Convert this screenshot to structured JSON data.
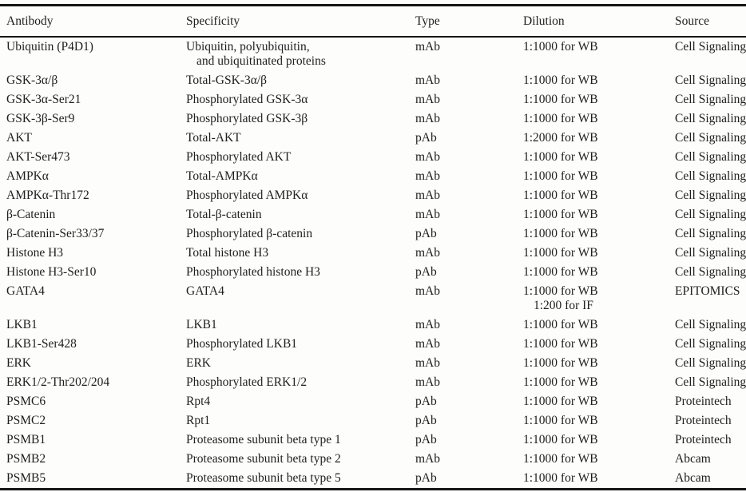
{
  "page": {
    "background": "#fdfdfc",
    "text_color": "#1e1e1e",
    "rule_color": "#161616"
  },
  "table": {
    "columns": [
      {
        "key": "antibody",
        "label": "Antibody"
      },
      {
        "key": "specificity",
        "label": "Specificity"
      },
      {
        "key": "type",
        "label": "Type"
      },
      {
        "key": "dilution",
        "label": "Dilution"
      },
      {
        "key": "source",
        "label": "Source"
      }
    ],
    "rows": [
      {
        "antibody": "Ubiquitin (P4D1)",
        "specificity": "Ubiquitin, polyubiquitin,",
        "specificity_line2": "and ubiquitinated proteins",
        "type": "mAb",
        "dilution": "1:1000 for WB",
        "source": "Cell Signaling"
      },
      {
        "antibody": "GSK-3α/β",
        "specificity": "Total-GSK-3α/β",
        "type": "mAb",
        "dilution": "1:1000 for WB",
        "source": "Cell Signaling"
      },
      {
        "antibody": "GSK-3α-Ser21",
        "specificity": "Phosphorylated GSK-3α",
        "type": "mAb",
        "dilution": "1:1000 for WB",
        "source": "Cell Signaling"
      },
      {
        "antibody": "GSK-3β-Ser9",
        "specificity": "Phosphorylated GSK-3β",
        "type": "mAb",
        "dilution": "1:1000 for WB",
        "source": "Cell Signaling"
      },
      {
        "antibody": "AKT",
        "specificity": "Total-AKT",
        "type": "pAb",
        "dilution": "1:2000 for WB",
        "source": "Cell Signaling"
      },
      {
        "antibody": "AKT-Ser473",
        "specificity": "Phosphorylated AKT",
        "type": "mAb",
        "dilution": "1:1000 for WB",
        "source": "Cell Signaling"
      },
      {
        "antibody": "AMPKα",
        "specificity": "Total-AMPKα",
        "type": "mAb",
        "dilution": "1:1000 for WB",
        "source": "Cell Signaling"
      },
      {
        "antibody": "AMPKα-Thr172",
        "specificity": "Phosphorylated AMPKα",
        "type": "mAb",
        "dilution": "1:1000 for WB",
        "source": "Cell Signaling"
      },
      {
        "antibody": "β-Catenin",
        "specificity": "Total-β-catenin",
        "type": "mAb",
        "dilution": "1:1000 for WB",
        "source": "Cell Signaling"
      },
      {
        "antibody": "β-Catenin-Ser33/37",
        "specificity": "Phosphorylated β-catenin",
        "type": "pAb",
        "dilution": "1:1000 for WB",
        "source": "Cell Signaling"
      },
      {
        "antibody": "Histone H3",
        "specificity": "Total histone H3",
        "type": "mAb",
        "dilution": "1:1000 for WB",
        "source": "Cell Signaling"
      },
      {
        "antibody": "Histone H3-Ser10",
        "specificity": "Phosphorylated histone H3",
        "type": "pAb",
        "dilution": "1:1000 for WB",
        "source": "Cell Signaling"
      },
      {
        "antibody": "GATA4",
        "specificity": "GATA4",
        "type": "mAb",
        "dilution": "1:1000 for WB",
        "dilution_line2": "1:200 for IF",
        "source": "EPITOMICS"
      },
      {
        "antibody": "LKB1",
        "specificity": "LKB1",
        "type": "mAb",
        "dilution": "1:1000 for WB",
        "source": "Cell Signaling"
      },
      {
        "antibody": "LKB1-Ser428",
        "specificity": "Phosphorylated LKB1",
        "type": "mAb",
        "dilution": "1:1000 for WB",
        "source": "Cell Signaling"
      },
      {
        "antibody": "ERK",
        "specificity": "ERK",
        "type": "mAb",
        "dilution": "1:1000 for WB",
        "source": "Cell Signaling"
      },
      {
        "antibody": "ERK1/2-Thr202/204",
        "specificity": "Phosphorylated ERK1/2",
        "type": "mAb",
        "dilution": "1:1000 for WB",
        "source": "Cell Signaling"
      },
      {
        "antibody": "PSMC6",
        "specificity": "Rpt4",
        "type": "pAb",
        "dilution": "1:1000 for WB",
        "source": "Proteintech"
      },
      {
        "antibody": "PSMC2",
        "specificity": "Rpt1",
        "type": "pAb",
        "dilution": "1:1000 for WB",
        "source": "Proteintech"
      },
      {
        "antibody": "PSMB1",
        "specificity": "Proteasome subunit beta type 1",
        "type": "pAb",
        "dilution": "1:1000 for WB",
        "source": "Proteintech"
      },
      {
        "antibody": "PSMB2",
        "specificity": "Proteasome subunit beta type 2",
        "type": "mAb",
        "dilution": "1:1000 for WB",
        "source": "Abcam"
      },
      {
        "antibody": "PSMB5",
        "specificity": "Proteasome subunit beta type 5",
        "type": "pAb",
        "dilution": "1:1000 for WB",
        "source": "Abcam"
      }
    ]
  }
}
